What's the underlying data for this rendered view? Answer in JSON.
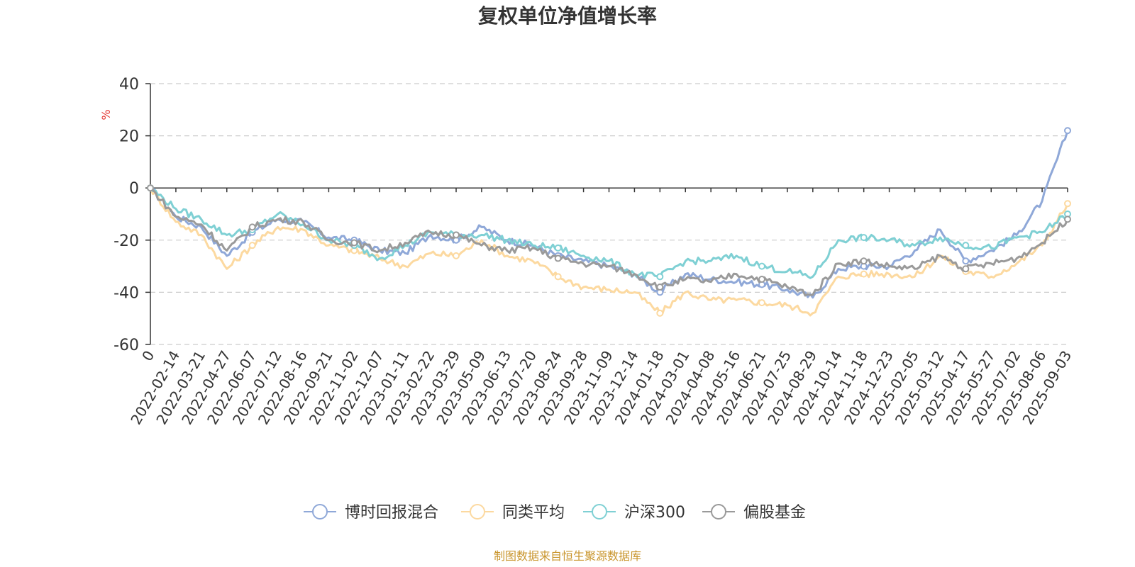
{
  "chart_data": {
    "type": "line",
    "title": "复权单位净值增长率",
    "unit_label": "%",
    "ylim": [
      -60,
      40
    ],
    "y_ticks": [
      "40",
      "20",
      "0",
      "-20",
      "-40",
      "-60"
    ],
    "x_tick_labels": [
      "0",
      "2022-02-14",
      "2022-03-21",
      "2022-04-27",
      "2022-06-07",
      "2022-07-12",
      "2022-08-16",
      "2022-09-21",
      "2022-11-02",
      "2022-12-07",
      "2023-01-11",
      "2023-02-22",
      "2023-03-29",
      "2023-05-09",
      "2023-06-13",
      "2023-07-20",
      "2023-08-24",
      "2023-09-28",
      "2023-11-09",
      "2023-12-14",
      "2024-01-18",
      "2024-03-01",
      "2024-04-08",
      "2024-05-16",
      "2024-06-21",
      "2024-07-25",
      "2024-08-29",
      "2024-10-14",
      "2024-11-18",
      "2024-12-23",
      "2025-02-05",
      "2025-03-12",
      "2025-04-17",
      "2025-05-27",
      "2025-07-02",
      "2025-08-06",
      "2025-09-03"
    ],
    "grid": true,
    "legend_position": "bottom",
    "series": [
      {
        "name": "博时回报混合",
        "color": "#8fa8d8",
        "values": [
          0,
          -11,
          -15,
          -26,
          -17,
          -12,
          -13,
          -19,
          -20,
          -24,
          -25,
          -18,
          -20,
          -15,
          -20,
          -22,
          -26,
          -28,
          -30,
          -33,
          -40,
          -33,
          -35,
          -36,
          -37,
          -39,
          -42,
          -31,
          -30,
          -30,
          -24,
          -16,
          -28,
          -24,
          -18,
          -5,
          22
        ]
      },
      {
        "name": "同类平均",
        "color": "#fcd9a0",
        "values": [
          0,
          -13,
          -18,
          -31,
          -22,
          -15,
          -16,
          -22,
          -24,
          -27,
          -30,
          -25,
          -26,
          -20,
          -26,
          -28,
          -34,
          -38,
          -39,
          -40,
          -48,
          -40,
          -43,
          -43,
          -44,
          -45,
          -48,
          -34,
          -33,
          -33,
          -34,
          -26,
          -32,
          -34,
          -29,
          -22,
          -6
        ]
      },
      {
        "name": "沪深300",
        "color": "#7fd0d4",
        "values": [
          0,
          -8,
          -12,
          -18,
          -16,
          -10,
          -14,
          -20,
          -22,
          -27,
          -22,
          -17,
          -18,
          -18,
          -20,
          -22,
          -23,
          -26,
          -28,
          -33,
          -34,
          -28,
          -28,
          -26,
          -30,
          -32,
          -34,
          -20,
          -19,
          -20,
          -22,
          -19,
          -22,
          -23,
          -19,
          -17,
          -10
        ]
      },
      {
        "name": "偏股基金",
        "color": "#9a9a9a",
        "values": [
          0,
          -11,
          -14,
          -24,
          -15,
          -12,
          -13,
          -20,
          -21,
          -24,
          -21,
          -17,
          -18,
          -22,
          -24,
          -23,
          -27,
          -29,
          -30,
          -33,
          -38,
          -35,
          -36,
          -33,
          -35,
          -38,
          -41,
          -29,
          -28,
          -30,
          -31,
          -26,
          -31,
          -29,
          -27,
          -21,
          -12
        ]
      }
    ]
  },
  "source_note": "制图数据来自恒生聚源数据库"
}
